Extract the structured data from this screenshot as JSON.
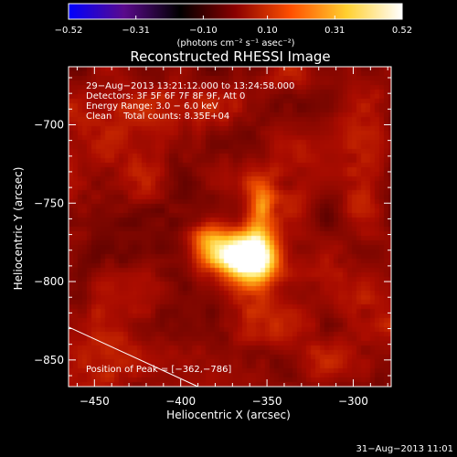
{
  "chart_data": {
    "type": "heatmap",
    "title": "Reconstructed RHESSI Image",
    "xlabel": "Heliocentric X (arcsec)",
    "ylabel": "Heliocentric Y (arcsec)",
    "xlim": [
      -465,
      -278
    ],
    "ylim": [
      -867,
      -663
    ],
    "xticks": [
      -450,
      -400,
      -350,
      -300
    ],
    "yticks": [
      -700,
      -750,
      -800,
      -850
    ],
    "xtick_labels": [
      "−450",
      "−400",
      "−350",
      "−300"
    ],
    "ytick_labels": [
      "−700",
      "−750",
      "−800",
      "−850"
    ],
    "colorbar": {
      "min": -0.52,
      "max": 0.52,
      "ticks": [
        -0.52,
        -0.31,
        -0.1,
        0.1,
        0.31,
        0.52
      ],
      "tick_labels": [
        "−0.52",
        "−0.31",
        "−0.10",
        "0.10",
        "0.31",
        "0.52"
      ],
      "label": "(photons cm⁻² s⁻¹ asec⁻²)",
      "colors": [
        "#0000ff",
        "#5a0a8c",
        "#000000",
        "#8a0000",
        "#ff5000",
        "#ffd030",
        "#ffffff"
      ]
    },
    "annotations": [
      "29−Aug−2013 13:21:12.000 to 13:24:58.000",
      "Detectors: 3F 5F 6F 7F 8F 9F, Att 0",
      "Energy Range: 3.0 − 6.0 keV",
      "Clean    Total counts: 8.35E+04"
    ],
    "peak_label": "Position of Peak = [−362,−786]",
    "peak": {
      "x": -362,
      "y": -786,
      "value": 0.52
    },
    "background_level": 0.2,
    "sources": [
      {
        "x": -362,
        "y": -786,
        "sx": 14,
        "sy": 10,
        "amp": 0.34
      },
      {
        "x": -378,
        "y": -778,
        "sx": 10,
        "sy": 9,
        "amp": 0.18
      },
      {
        "x": -355,
        "y": -765,
        "sx": 6,
        "sy": 15,
        "amp": 0.16
      },
      {
        "x": -352,
        "y": -748,
        "sx": 5,
        "sy": 8,
        "amp": 0.1
      },
      {
        "x": -385,
        "y": -770,
        "sx": 7,
        "sy": 6,
        "amp": 0.08
      }
    ],
    "limb_line": {
      "x": [
        -465,
        -390
      ],
      "y": [
        -829,
        -867
      ]
    }
  },
  "footer": {
    "timestamp": "31−Aug−2013 11:01"
  }
}
